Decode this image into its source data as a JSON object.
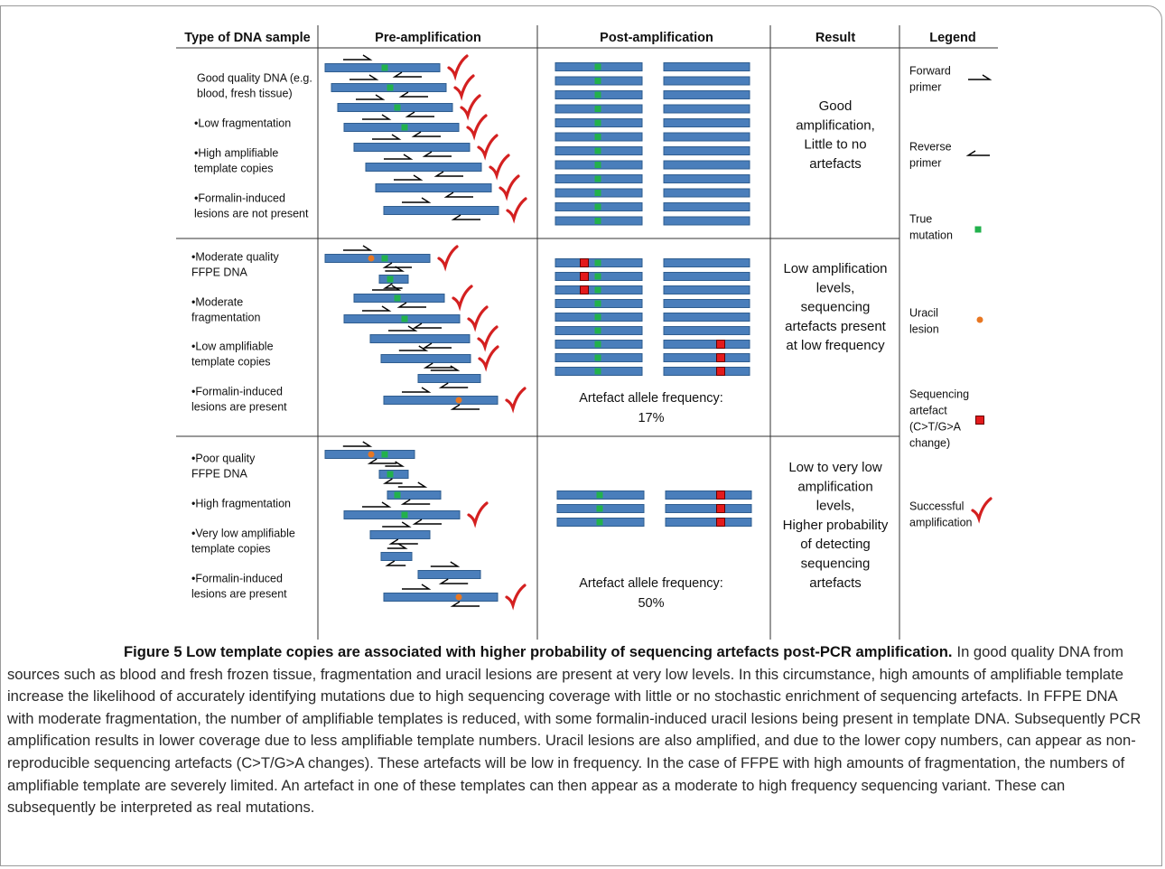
{
  "figure": {
    "headers": [
      "Type of DNA sample",
      "Pre-amplification",
      "Post-amplification",
      "Result",
      "Legend"
    ],
    "rows": [
      {
        "sample": [
          [
            "Good quality DNA (e.g.",
            "blood, fresh tissue)"
          ],
          [
            "•Low fragmentation"
          ],
          [
            "•High amplifiable",
            "template copies"
          ],
          [
            "•Formalin-induced",
            "lesions are not present"
          ]
        ],
        "result": [
          "Good",
          "amplification,",
          "Little to no",
          "artefacts"
        ]
      },
      {
        "sample": [
          [
            "•Moderate quality",
            "FFPE DNA"
          ],
          [
            "•Moderate",
            "fragmentation"
          ],
          [
            "•Low amplifiable",
            "template copies"
          ],
          [
            "•Formalin-induced",
            "lesions are present"
          ]
        ],
        "result": [
          "Low amplification",
          "levels,",
          "sequencing",
          "artefacts present",
          "at low frequency"
        ],
        "note": [
          "Artefact allele frequency:",
          "17%"
        ]
      },
      {
        "sample": [
          [
            "•Poor quality",
            "FFPE DNA"
          ],
          [
            "•High fragmentation"
          ],
          [
            "•Very low amplifiable",
            "template copies"
          ],
          [
            "•Formalin-induced",
            "lesions are present"
          ]
        ],
        "result": [
          "Low to very low",
          "amplification",
          "levels,",
          "Higher probability",
          "of detecting",
          "sequencing",
          "artefacts"
        ],
        "note": [
          "Artefact allele frequency:",
          "50%"
        ]
      }
    ],
    "legend": [
      {
        "label": [
          "Forward",
          "primer"
        ]
      },
      {
        "label": [
          "Reverse",
          "primer"
        ]
      },
      {
        "label": [
          "True",
          "mutation"
        ]
      },
      {
        "label": [
          "Uracil",
          "lesion"
        ]
      },
      {
        "label": [
          "Sequencing",
          "artefact",
          "(C>T/G>A",
          "change)"
        ]
      },
      {
        "label": [
          "Successful",
          "amplification"
        ]
      }
    ]
  },
  "caption": {
    "title": "Figure 5 Low template copies are associated with higher probability of sequencing artefacts post-PCR amplification.",
    "text": "In good quality DNA from sources such as blood and fresh frozen tissue, fragmentation and uracil lesions are present at very low levels. In this circumstance, high amounts of amplifiable template increase the likelihood of accurately identifying mutations due to high sequencing coverage with little or no stochastic enrichment of sequencing artefacts. In FFPE DNA with moderate fragmentation, the number of amplifiable templates is reduced, with some formalin-induced uracil lesions being present in template DNA. Subsequently PCR amplification results in lower coverage due to less amplifiable template numbers. Uracil lesions are also amplified, and due to the lower copy numbers, can appear as non-reproducible sequencing artefacts (C>T/G>A changes). These artefacts will be low in frequency. In the case of FFPE with high amounts of fragmentation, the numbers of amplifiable template are severely limited. An artefact in one of these templates can then appear as a moderate to high frequency sequencing variant. These can subsequently be interpreted as real mutations."
  }
}
